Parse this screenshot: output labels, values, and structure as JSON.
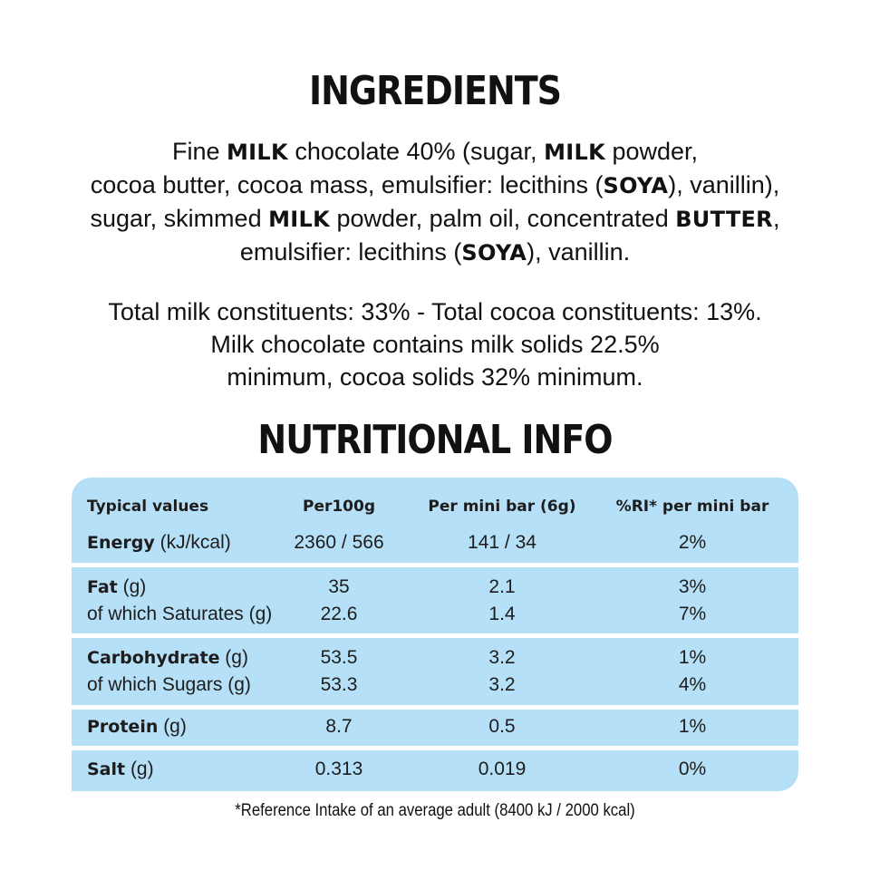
{
  "ingredients": {
    "title": "INGREDIENTS",
    "lines": [
      [
        {
          "t": "Fine "
        },
        {
          "t": "MILK",
          "b": true
        },
        {
          "t": " chocolate 40% (sugar, "
        },
        {
          "t": "MILK",
          "b": true
        },
        {
          "t": " powder,"
        }
      ],
      [
        {
          "t": "cocoa butter, cocoa mass, emulsifier: lecithins ("
        },
        {
          "t": "SOYA",
          "b": true
        },
        {
          "t": "), vanillin),"
        }
      ],
      [
        {
          "t": "sugar, skimmed "
        },
        {
          "t": "MILK",
          "b": true
        },
        {
          "t": " powder, palm oil, concentrated "
        },
        {
          "t": "BUTTER",
          "b": true
        },
        {
          "t": ","
        }
      ],
      [
        {
          "t": "emulsifier: lecithins ("
        },
        {
          "t": "SOYA",
          "b": true
        },
        {
          "t": "), vanillin."
        }
      ]
    ],
    "constituents": [
      "Total milk constituents: 33% - Total cocoa constituents: 13%.",
      "Milk chocolate contains milk solids 22.5%",
      "minimum, cocoa solids 32% minimum."
    ]
  },
  "nutrition": {
    "title": "NUTRITIONAL INFO",
    "headers": {
      "label": "Typical values",
      "per100": "Per100g",
      "per_bar": "Per mini bar (6g)",
      "ri": "%RI* per mini bar"
    },
    "rows": {
      "energy": {
        "name": "Energy",
        "unit": " (kJ/kcal)",
        "per100": "2360 / 566",
        "per_bar": "141 / 34",
        "ri": "2%"
      },
      "fat": {
        "name": "Fat",
        "unit": " (g)",
        "per100": "35",
        "per_bar": "2.1",
        "ri": "3%"
      },
      "saturates": {
        "name": "of which Saturates (g)",
        "per100": "22.6",
        "per_bar": "1.4",
        "ri": "7%"
      },
      "carbohydrate": {
        "name": "Carbohydrate",
        "unit": " (g)",
        "per100": "53.5",
        "per_bar": "3.2",
        "ri": "1%"
      },
      "sugars": {
        "name": "of which Sugars (g)",
        "per100": "53.3",
        "per_bar": "3.2",
        "ri": "4%"
      },
      "protein": {
        "name": "Protein",
        "unit": " (g)",
        "per100": "8.7",
        "per_bar": "0.5",
        "ri": "1%"
      },
      "salt": {
        "name": "Salt",
        "unit": " (g)",
        "per100": "0.313",
        "per_bar": "0.019",
        "ri": "0%"
      }
    },
    "footnote": "*Reference Intake of an average adult (8400 kJ / 2000 kcal)"
  },
  "colors": {
    "table_band": "#b6e0f7",
    "text": "#111111"
  }
}
